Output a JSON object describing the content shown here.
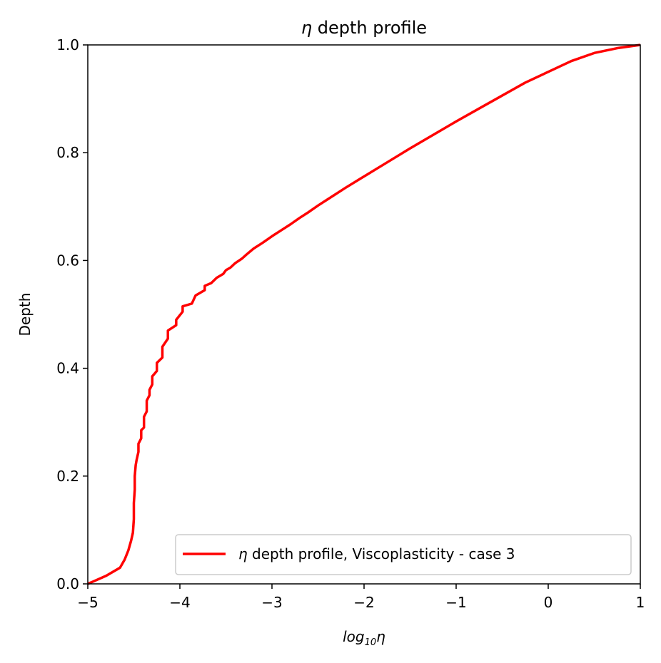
{
  "chart_data": {
    "type": "line",
    "title": "η depth profile",
    "title_symbol": "η",
    "title_rest": " depth profile",
    "xlabel": "log10η",
    "xlabel_parts": {
      "base": "log",
      "sub": "10",
      "sym": "η"
    },
    "ylabel": "Depth",
    "xlim": [
      -5,
      1
    ],
    "ylim": [
      0,
      1
    ],
    "xticks": [
      -5,
      -4,
      -3,
      -2,
      -1,
      0,
      1
    ],
    "xtick_labels": [
      "−5",
      "−4",
      "−3",
      "−2",
      "−1",
      "0",
      "1"
    ],
    "yticks": [
      0.0,
      0.2,
      0.4,
      0.6,
      0.8,
      1.0
    ],
    "ytick_labels": [
      "0.0",
      "0.2",
      "0.4",
      "0.6",
      "0.8",
      "1.0"
    ],
    "grid": false,
    "legend_position": "lower-right",
    "series": [
      {
        "name": "η depth profile, Viscoplasticity - case 3",
        "name_symbol": "η",
        "name_rest": " depth profile, Viscoplasticity - case 3",
        "color": "#ff0000",
        "x": [
          -5.0,
          -4.8,
          -4.65,
          -4.6,
          -4.56,
          -4.53,
          -4.51,
          -4.5,
          -4.5,
          -4.49,
          -4.49,
          -4.48,
          -4.47,
          -4.45,
          -4.45,
          -4.42,
          -4.42,
          -4.39,
          -4.39,
          -4.36,
          -4.36,
          -4.33,
          -4.33,
          -4.3,
          -4.3,
          -4.25,
          -4.25,
          -4.19,
          -4.19,
          -4.13,
          -4.13,
          -4.04,
          -4.04,
          -3.97,
          -3.97,
          -3.87,
          -3.83,
          -3.73,
          -3.73,
          -3.66,
          -3.6,
          -3.53,
          -3.5,
          -3.45,
          -3.4,
          -3.33,
          -3.27,
          -3.2,
          -3.1,
          -3.0,
          -2.9,
          -2.8,
          -2.7,
          -2.6,
          -2.5,
          -2.4,
          -2.2,
          -2.0,
          -1.75,
          -1.5,
          -1.25,
          -1.0,
          -0.75,
          -0.5,
          -0.25,
          0.0,
          0.25,
          0.5,
          0.75,
          1.0
        ],
        "y": [
          0.0,
          0.015,
          0.03,
          0.045,
          0.062,
          0.08,
          0.095,
          0.12,
          0.15,
          0.175,
          0.2,
          0.22,
          0.23,
          0.245,
          0.26,
          0.27,
          0.285,
          0.29,
          0.31,
          0.32,
          0.34,
          0.35,
          0.36,
          0.37,
          0.385,
          0.395,
          0.41,
          0.42,
          0.44,
          0.455,
          0.47,
          0.48,
          0.49,
          0.505,
          0.515,
          0.52,
          0.535,
          0.545,
          0.553,
          0.558,
          0.568,
          0.575,
          0.582,
          0.587,
          0.595,
          0.603,
          0.612,
          0.622,
          0.633,
          0.645,
          0.656,
          0.667,
          0.679,
          0.69,
          0.702,
          0.713,
          0.735,
          0.756,
          0.782,
          0.808,
          0.833,
          0.858,
          0.882,
          0.906,
          0.93,
          0.95,
          0.97,
          0.985,
          0.994,
          1.0
        ]
      }
    ]
  }
}
